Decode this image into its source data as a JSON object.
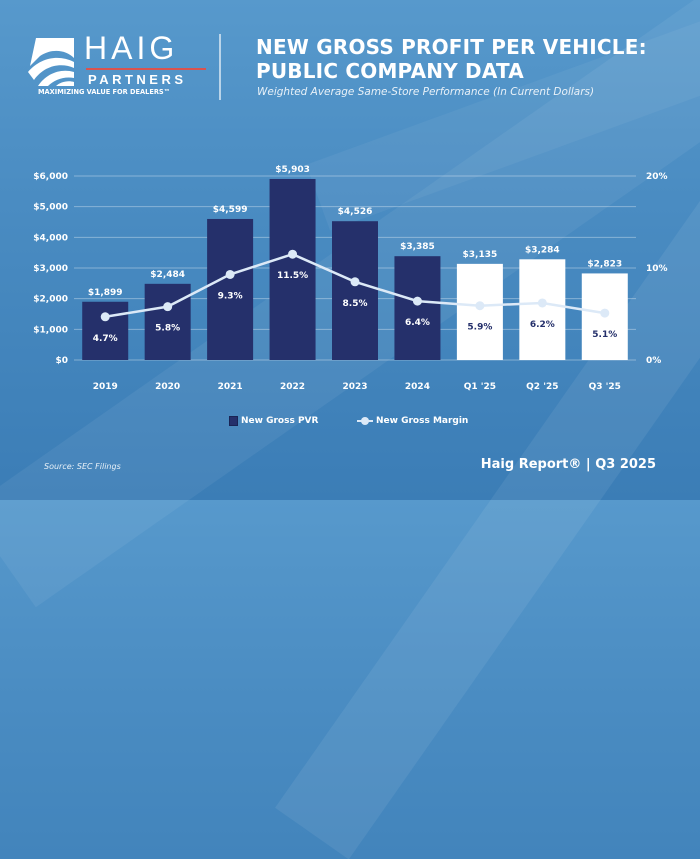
{
  "logo": {
    "name": "HAIG",
    "sub": "PARTNERS",
    "tagline": "MAXIMIZING VALUE FOR DEALERS™"
  },
  "header": {
    "title_line1": "NEW GROSS PROFIT PER VEHICLE:",
    "title_line2": "PUBLIC COMPANY DATA",
    "subtitle": "Weighted Average Same-Store Performance (In Current Dollars)"
  },
  "colors": {
    "bar_historic": "#25306b",
    "bar_2025": "#ffffff",
    "line": "#dce9f7",
    "pct_on_dark": "#ffffff",
    "pct_on_light": "#25306b"
  },
  "chart_data": {
    "type": "bar",
    "title": "NEW GROSS PROFIT PER VEHICLE: PUBLIC COMPANY DATA",
    "subtitle": "Weighted Average Same-Store Performance (In Current Dollars)",
    "categories": [
      "2019",
      "2020",
      "2021",
      "2022",
      "2023",
      "2024",
      "Q1 '25",
      "Q2 '25",
      "Q3 '25"
    ],
    "series": [
      {
        "name": "New Gross PVR",
        "type": "bar",
        "axis": "left",
        "values": [
          1899,
          2484,
          4599,
          5903,
          4526,
          3385,
          3135,
          3284,
          2823
        ],
        "labels": [
          "$1,899",
          "$2,484",
          "$4,599",
          "$5,903",
          "$4,526",
          "$3,385",
          "$3,135",
          "$3,284",
          "$2,823"
        ]
      },
      {
        "name": "New Gross Margin",
        "type": "line",
        "axis": "right",
        "values": [
          4.7,
          5.8,
          9.3,
          11.5,
          8.5,
          6.4,
          5.9,
          6.2,
          5.1
        ],
        "labels": [
          "4.7%",
          "5.8%",
          "9.3%",
          "11.5%",
          "8.5%",
          "6.4%",
          "5.9%",
          "6.2%",
          "5.1%"
        ]
      }
    ],
    "left_axis": {
      "ylim": [
        0,
        6000
      ],
      "ticks": [
        0,
        1000,
        2000,
        3000,
        4000,
        5000,
        6000
      ],
      "tick_labels": [
        "$0",
        "$1,000",
        "$2,000",
        "$3,000",
        "$4,000",
        "$5,000",
        "$6,000"
      ]
    },
    "right_axis": {
      "ylim": [
        0,
        20
      ],
      "ticks": [
        0,
        10,
        20
      ],
      "tick_labels": [
        "0%",
        "10%",
        "20%"
      ]
    },
    "grid": true,
    "legend_position": "bottom-center"
  },
  "legend": {
    "bar_label": "New Gross PVR",
    "line_label": "New Gross Margin"
  },
  "footer": {
    "source": "Source: SEC Filings",
    "report": "Haig Report® | Q3 2025"
  }
}
